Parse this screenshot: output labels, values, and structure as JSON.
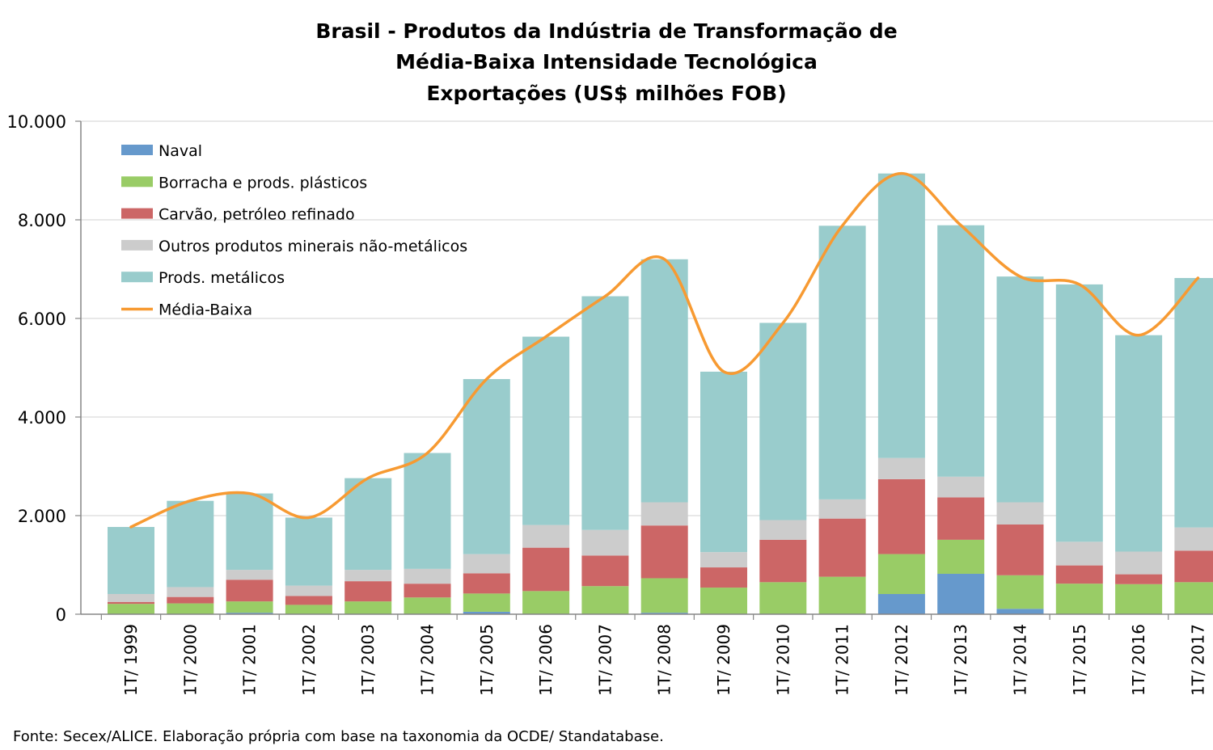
{
  "chart_data": {
    "type": "bar",
    "stacked": true,
    "title_lines": [
      "Brasil - Produtos da Indústria de Transformação de",
      "Média-Baixa Intensidade Tecnológica",
      "Exportações (US$ milhões FOB)"
    ],
    "xlabel": "",
    "ylabel": "",
    "ylim": [
      0,
      10000
    ],
    "yticks": [
      0,
      2000,
      4000,
      6000,
      8000,
      10000
    ],
    "ytick_labels": [
      "0",
      "2.000",
      "4.000",
      "6.000",
      "8.000",
      "10.000"
    ],
    "grid": true,
    "legend_position": "top-left",
    "categories": [
      "1T/ 1999",
      "1T/ 2000",
      "1T/ 2001",
      "1T/ 2002",
      "1T/ 2003",
      "1T/ 2004",
      "1T/ 2005",
      "1T/ 2006",
      "1T/ 2007",
      "1T/ 2008",
      "1T/ 2009",
      "1T/ 2010",
      "1T/ 2011",
      "1T/ 2012",
      "1T/ 2013",
      "1T/ 2014",
      "1T/ 2015",
      "1T/ 2016",
      "1T/ 2017"
    ],
    "series": [
      {
        "name": "Naval",
        "color": "#6699cc",
        "values": [
          0,
          0,
          30,
          0,
          0,
          0,
          50,
          0,
          0,
          30,
          0,
          0,
          0,
          410,
          820,
          110,
          0,
          0,
          0
        ]
      },
      {
        "name": "Borracha e prods. plásticos",
        "color": "#99cc66",
        "values": [
          210,
          220,
          230,
          190,
          260,
          340,
          370,
          470,
          570,
          700,
          540,
          650,
          760,
          810,
          690,
          680,
          620,
          610,
          650
        ]
      },
      {
        "name": "Carvão, petróleo refinado",
        "color": "#cc6666",
        "values": [
          40,
          130,
          440,
          180,
          410,
          280,
          410,
          880,
          620,
          1070,
          410,
          860,
          1180,
          1520,
          860,
          1030,
          370,
          200,
          640
        ]
      },
      {
        "name": "Outros produtos minerais não-metálicos",
        "color": "#cccccc",
        "values": [
          160,
          200,
          200,
          210,
          230,
          300,
          390,
          460,
          520,
          470,
          310,
          400,
          390,
          430,
          420,
          450,
          480,
          460,
          470
        ]
      },
      {
        "name": "Prods. metálicos",
        "color": "#99cccc",
        "values": [
          1360,
          1750,
          1550,
          1380,
          1860,
          2350,
          3550,
          3820,
          4740,
          4930,
          3660,
          4000,
          5550,
          5770,
          5100,
          4580,
          5220,
          4390,
          5060
        ]
      }
    ],
    "line_series": {
      "name": "Média-Baixa",
      "color": "#f79a32",
      "values": [
        1770,
        2300,
        2450,
        1960,
        2760,
        3270,
        4770,
        5630,
        6450,
        7200,
        4920,
        5910,
        7880,
        8940,
        7890,
        6850,
        6690,
        5660,
        6820
      ]
    }
  },
  "footer": {
    "source": "Fonte: Secex/ALICE. Elaboração própria com base na taxonomia da OCDE/ Standatabase."
  }
}
